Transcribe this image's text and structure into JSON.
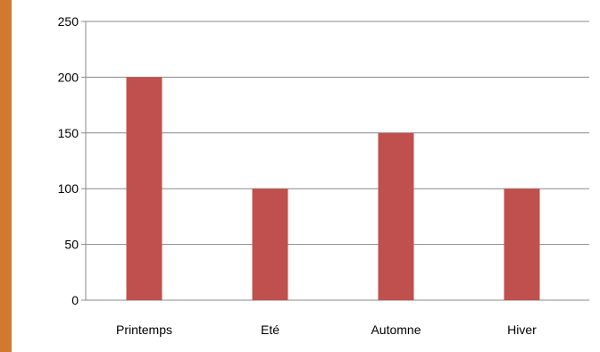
{
  "chart_data": {
    "type": "bar",
    "categories": [
      "Printemps",
      "Eté",
      "Automne",
      "Hiver"
    ],
    "values": [
      200,
      100,
      150,
      100
    ],
    "title": "",
    "xlabel": "",
    "ylabel": "",
    "ylim": [
      0,
      250
    ],
    "yticks": [
      0,
      50,
      100,
      150,
      200,
      250
    ],
    "grid": true,
    "legend": "none",
    "bar_color": "#c0504d",
    "background_color": "#d07a2f"
  }
}
